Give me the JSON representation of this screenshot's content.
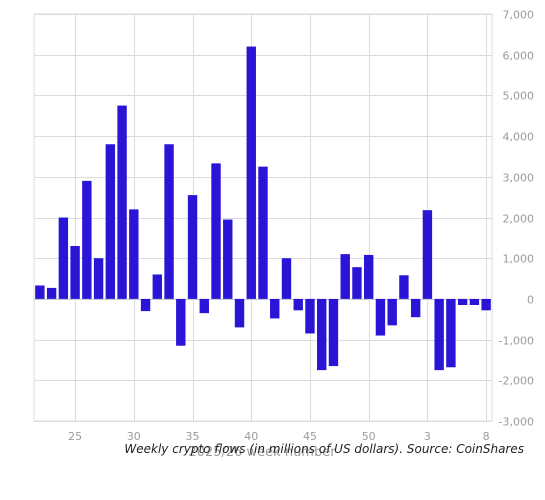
{
  "chart_data": {
    "type": "bar",
    "x": [
      22,
      23,
      24,
      25,
      26,
      27,
      28,
      29,
      30,
      31,
      32,
      33,
      34,
      35,
      36,
      37,
      38,
      39,
      40,
      41,
      42,
      43,
      44,
      45,
      46,
      47,
      48,
      49,
      50,
      51,
      52,
      1,
      2,
      3,
      4,
      5,
      6,
      7,
      8
    ],
    "values": [
      330,
      270,
      2000,
      1300,
      2900,
      1000,
      3800,
      4750,
      2200,
      -300,
      600,
      3800,
      -1150,
      2550,
      -350,
      3330,
      1950,
      -700,
      6200,
      3250,
      -480,
      1000,
      -280,
      -850,
      -1750,
      -1650,
      1100,
      780,
      1080,
      -900,
      -650,
      580,
      -450,
      2180,
      -1750,
      -1680,
      -150,
      -150,
      -280
    ],
    "xticks": [
      "25",
      "30",
      "35",
      "40",
      "45",
      "50",
      "3",
      "8"
    ],
    "yticks": [
      "-3,000",
      "-2,000",
      "-1,000",
      "0",
      "1,000",
      "2,000",
      "3,000",
      "4,000",
      "5,000",
      "6,000",
      "7,000"
    ],
    "ylim": [
      -3000,
      7000
    ],
    "xlabel": "2025/26 week number",
    "ylabel": "",
    "grid": true,
    "colors": {
      "bar": "#2a14d6",
      "grid": "#dcdcdc",
      "zero": "#c8c8c8",
      "text": "#9b9b9b"
    }
  },
  "caption": "Weekly crypto flows (in millions of US dollars). Source: CoinShares"
}
